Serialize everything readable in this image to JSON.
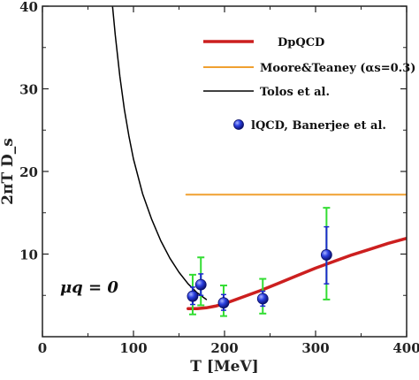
{
  "chart_data": {
    "type": "line",
    "xlabel": "T [MeV]",
    "ylabel": "2πT D_s",
    "xlim": [
      0,
      400
    ],
    "ylim": [
      0,
      40
    ],
    "x_ticks": [
      0,
      100,
      200,
      300,
      400
    ],
    "y_ticks": [
      10,
      20,
      30,
      40
    ],
    "x_tick_labels": [
      "0",
      "100",
      "200",
      "300",
      "400"
    ],
    "y_tick_labels": [
      "10",
      "20",
      "30",
      "40"
    ],
    "annotation": "μq = 0",
    "legend_position": "top-right",
    "series": [
      {
        "name": "DpQCD",
        "color": "#cc1f1f",
        "type": "line",
        "x": [
          160,
          170,
          180,
          190,
          200,
          220,
          240,
          260,
          280,
          300,
          320,
          340,
          360,
          380,
          400
        ],
        "y": [
          3.4,
          3.4,
          3.5,
          3.7,
          4.0,
          4.8,
          5.6,
          6.5,
          7.4,
          8.3,
          9.1,
          9.9,
          10.6,
          11.3,
          11.9
        ]
      },
      {
        "name": "Moore&Teaney (αs=0.3)",
        "color": "#f0a030",
        "type": "line",
        "x": [
          158,
          400
        ],
        "y": [
          17.2,
          17.2
        ]
      },
      {
        "name": "Tolos et al.",
        "color": "#000000",
        "type": "line",
        "x": [
          77,
          80,
          85,
          90,
          95,
          100,
          110,
          120,
          130,
          140,
          150,
          160,
          170,
          180
        ],
        "y": [
          40,
          36.5,
          31.5,
          27.5,
          24.3,
          21.5,
          17.3,
          14.2,
          11.6,
          9.5,
          7.8,
          6.4,
          5.3,
          4.5
        ]
      },
      {
        "name": "lQCD, Banerjee et al.",
        "color": "#1b2acc",
        "type": "scatter",
        "points": [
          {
            "x": 165,
            "y": 4.9,
            "stat_low": 3.9,
            "stat_high": 6.0,
            "sys_low": 2.7,
            "sys_high": 7.5
          },
          {
            "x": 174,
            "y": 6.3,
            "stat_low": 5.0,
            "stat_high": 7.6,
            "sys_low": 3.8,
            "sys_high": 9.6
          },
          {
            "x": 199,
            "y": 4.1,
            "stat_low": 3.2,
            "stat_high": 5.1,
            "sys_low": 2.5,
            "sys_high": 6.2
          },
          {
            "x": 242,
            "y": 4.6,
            "stat_low": 3.7,
            "stat_high": 5.5,
            "sys_low": 2.8,
            "sys_high": 7.0
          },
          {
            "x": 312,
            "y": 9.9,
            "stat_low": 6.4,
            "stat_high": 13.3,
            "sys_low": 4.5,
            "sys_high": 15.6
          }
        ]
      }
    ]
  }
}
